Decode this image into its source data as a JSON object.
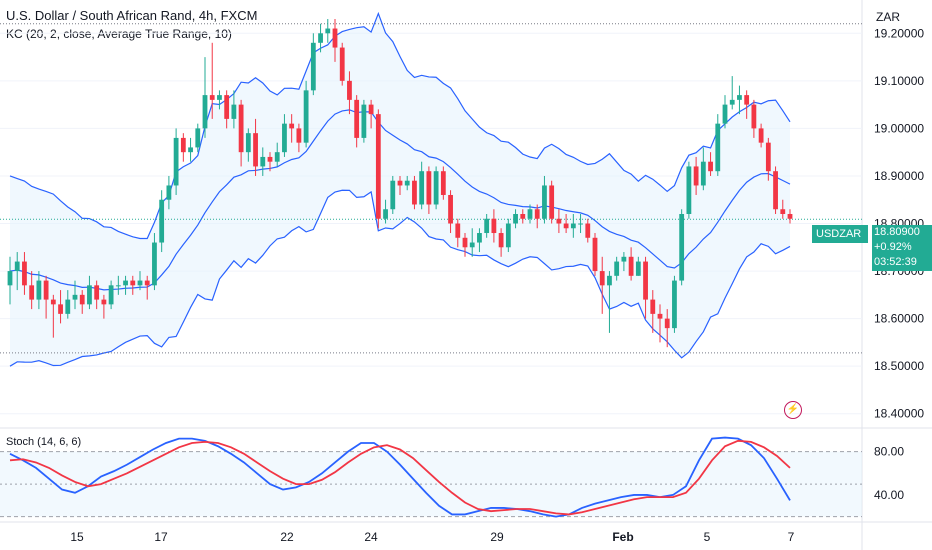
{
  "header": {
    "title": "U.S. Dollar / South African Rand, 4h, FXCM",
    "indicator": "KC (20, 2, close, Average True Range, 10)",
    "currency": "ZAR"
  },
  "price_tag": {
    "symbol": "USDZAR",
    "price": "18.80900",
    "change": "+0.92%",
    "countdown": "03:52:39"
  },
  "stoch_label": "Stoch (14, 6, 6)",
  "colors": {
    "up": "#22ab94",
    "down": "#f23645",
    "band": "#2962ff",
    "stoch_k": "#2962ff",
    "stoch_d": "#f23645",
    "fill": "#e3f2fd"
  },
  "chart_data": [
    {
      "type": "candlestick",
      "title": "U.S. Dollar / South African Rand, 4h, FXCM",
      "x_ticks": [
        "15",
        "17",
        "22",
        "24",
        "29",
        "Feb",
        "5",
        "7"
      ],
      "y_ticks": [
        "18.40000",
        "18.50000",
        "18.60000",
        "18.70000",
        "18.80000",
        "18.90000",
        "19.00000",
        "19.10000",
        "19.20000"
      ],
      "ylim": [
        18.37,
        19.27
      ],
      "reference_lines": [
        19.22,
        18.528
      ],
      "last_price": 18.809,
      "candles": [
        [
          18.67,
          18.7,
          18.63,
          18.73
        ],
        [
          18.7,
          18.72,
          18.66,
          18.74
        ],
        [
          18.72,
          18.67,
          18.65,
          18.74
        ],
        [
          18.67,
          18.64,
          18.62,
          18.7
        ],
        [
          18.64,
          18.68,
          18.62,
          18.7
        ],
        [
          18.68,
          18.64,
          18.6,
          18.69
        ],
        [
          18.64,
          18.63,
          18.56,
          18.65
        ],
        [
          18.63,
          18.61,
          18.59,
          18.66
        ],
        [
          18.61,
          18.64,
          18.6,
          18.66
        ],
        [
          18.64,
          18.65,
          18.62,
          18.68
        ],
        [
          18.65,
          18.63,
          18.61,
          18.66
        ],
        [
          18.63,
          18.67,
          18.62,
          18.69
        ],
        [
          18.67,
          18.64,
          18.62,
          18.68
        ],
        [
          18.64,
          18.63,
          18.6,
          18.65
        ],
        [
          18.63,
          18.67,
          18.62,
          18.68
        ],
        [
          18.67,
          18.67,
          18.65,
          18.69
        ],
        [
          18.67,
          18.68,
          18.65,
          18.69
        ],
        [
          18.68,
          18.67,
          18.65,
          18.69
        ],
        [
          18.67,
          18.68,
          18.66,
          18.7
        ],
        [
          18.68,
          18.67,
          18.64,
          18.69
        ],
        [
          18.67,
          18.76,
          18.66,
          18.78
        ],
        [
          18.76,
          18.85,
          18.74,
          18.87
        ],
        [
          18.85,
          18.88,
          18.83,
          18.9
        ],
        [
          18.88,
          18.98,
          18.86,
          19.0
        ],
        [
          18.98,
          18.95,
          18.93,
          18.99
        ],
        [
          18.95,
          18.96,
          18.93,
          18.98
        ],
        [
          18.96,
          19.0,
          18.95,
          19.01
        ],
        [
          19.0,
          19.07,
          18.98,
          19.15
        ],
        [
          19.07,
          19.06,
          19.02,
          19.18
        ],
        [
          19.06,
          19.07,
          19.04,
          19.08
        ],
        [
          19.07,
          19.02,
          19.0,
          19.08
        ],
        [
          19.02,
          19.05,
          19.0,
          19.08
        ],
        [
          19.05,
          18.95,
          18.92,
          19.06
        ],
        [
          18.95,
          18.99,
          18.93,
          19.0
        ],
        [
          18.99,
          18.92,
          18.9,
          19.02
        ],
        [
          18.92,
          18.94,
          18.9,
          18.96
        ],
        [
          18.94,
          18.93,
          18.91,
          18.95
        ],
        [
          18.93,
          18.95,
          18.92,
          18.97
        ],
        [
          18.95,
          19.01,
          18.94,
          19.03
        ],
        [
          19.01,
          19.0,
          18.97,
          19.03
        ],
        [
          19.0,
          18.97,
          18.95,
          19.01
        ],
        [
          18.97,
          19.08,
          18.96,
          19.1
        ],
        [
          19.08,
          19.18,
          19.07,
          19.2
        ],
        [
          19.18,
          19.2,
          19.16,
          19.22
        ],
        [
          19.2,
          19.21,
          19.18,
          19.23
        ],
        [
          19.21,
          19.17,
          19.14,
          19.23
        ],
        [
          19.17,
          19.1,
          19.09,
          19.18
        ],
        [
          19.1,
          19.06,
          19.03,
          19.12
        ],
        [
          19.06,
          18.98,
          18.96,
          19.07
        ],
        [
          18.98,
          19.05,
          18.97,
          19.06
        ],
        [
          19.05,
          19.03,
          19.0,
          19.06
        ],
        [
          19.03,
          18.81,
          18.79,
          19.04
        ],
        [
          18.81,
          18.83,
          18.8,
          18.85
        ],
        [
          18.83,
          18.89,
          18.82,
          18.9
        ],
        [
          18.89,
          18.88,
          18.86,
          18.9
        ],
        [
          18.88,
          18.89,
          18.87,
          18.9
        ],
        [
          18.89,
          18.84,
          18.83,
          18.9
        ],
        [
          18.84,
          18.91,
          18.83,
          18.93
        ],
        [
          18.91,
          18.84,
          18.82,
          18.92
        ],
        [
          18.84,
          18.91,
          18.83,
          18.92
        ],
        [
          18.91,
          18.86,
          18.85,
          18.92
        ],
        [
          18.86,
          18.8,
          18.78,
          18.87
        ],
        [
          18.8,
          18.77,
          18.75,
          18.81
        ],
        [
          18.77,
          18.75,
          18.73,
          18.78
        ],
        [
          18.75,
          18.76,
          18.73,
          18.79
        ],
        [
          18.76,
          18.78,
          18.74,
          18.79
        ],
        [
          18.78,
          18.81,
          18.77,
          18.82
        ],
        [
          18.81,
          18.78,
          18.76,
          18.83
        ],
        [
          18.78,
          18.75,
          18.73,
          18.79
        ],
        [
          18.75,
          18.8,
          18.74,
          18.81
        ],
        [
          18.8,
          18.82,
          18.79,
          18.83
        ],
        [
          18.82,
          18.81,
          18.8,
          18.83
        ],
        [
          18.81,
          18.83,
          18.8,
          18.84
        ],
        [
          18.83,
          18.81,
          18.79,
          18.84
        ],
        [
          18.81,
          18.88,
          18.8,
          18.9
        ],
        [
          18.88,
          18.81,
          18.8,
          18.89
        ],
        [
          18.81,
          18.8,
          18.78,
          18.83
        ],
        [
          18.8,
          18.79,
          18.78,
          18.82
        ],
        [
          18.79,
          18.8,
          18.77,
          18.82
        ],
        [
          18.8,
          18.8,
          18.78,
          18.82
        ],
        [
          18.8,
          18.77,
          18.76,
          18.81
        ],
        [
          18.77,
          18.7,
          18.69,
          18.78
        ],
        [
          18.7,
          18.67,
          18.61,
          18.73
        ],
        [
          18.67,
          18.69,
          18.57,
          18.7
        ],
        [
          18.69,
          18.72,
          18.68,
          18.73
        ],
        [
          18.72,
          18.73,
          18.7,
          18.74
        ],
        [
          18.73,
          18.69,
          18.68,
          18.75
        ],
        [
          18.69,
          18.72,
          18.69,
          18.73
        ],
        [
          18.72,
          18.64,
          18.6,
          18.73
        ],
        [
          18.64,
          18.61,
          18.57,
          18.66
        ],
        [
          18.61,
          18.6,
          18.55,
          18.63
        ],
        [
          18.6,
          18.58,
          18.54,
          18.62
        ],
        [
          18.58,
          18.68,
          18.57,
          18.69
        ],
        [
          18.68,
          18.82,
          18.67,
          18.83
        ],
        [
          18.82,
          18.92,
          18.81,
          18.93
        ],
        [
          18.92,
          18.88,
          18.86,
          18.94
        ],
        [
          18.88,
          18.93,
          18.87,
          18.96
        ],
        [
          18.93,
          18.91,
          18.9,
          18.95
        ],
        [
          18.91,
          19.01,
          18.9,
          19.03
        ],
        [
          19.01,
          19.05,
          19.0,
          19.07
        ],
        [
          19.05,
          19.06,
          19.04,
          19.11
        ],
        [
          19.06,
          19.07,
          19.03,
          19.09
        ],
        [
          19.07,
          19.05,
          19.02,
          19.08
        ],
        [
          19.05,
          19.0,
          18.98,
          19.06
        ],
        [
          19.0,
          18.97,
          18.96,
          19.01
        ],
        [
          18.97,
          18.91,
          18.89,
          18.98
        ],
        [
          18.91,
          18.83,
          18.82,
          18.92
        ],
        [
          18.83,
          18.82,
          18.81,
          18.85
        ],
        [
          18.82,
          18.81,
          18.8,
          18.83
        ]
      ]
    },
    {
      "type": "line",
      "title": "Stoch (14, 6, 6)",
      "y_ticks": [
        "40.00",
        "80.00"
      ],
      "ylim": [
        15,
        100
      ],
      "levels": [
        80,
        50,
        20
      ],
      "series": [
        {
          "color": "#2962ff",
          "values": [
            78,
            72,
            65,
            55,
            45,
            42,
            48,
            57,
            62,
            68,
            75,
            82,
            88,
            92,
            92,
            90,
            85,
            78,
            70,
            60,
            50,
            45,
            47,
            52,
            60,
            70,
            80,
            88,
            88,
            80,
            68,
            55,
            42,
            30,
            22,
            22,
            25,
            28,
            28,
            27,
            25,
            22,
            20,
            22,
            28,
            32,
            35,
            38,
            40,
            40,
            38,
            40,
            48,
            72,
            92,
            93,
            92,
            86,
            74,
            55,
            35
          ]
        },
        {
          "color": "#f23645",
          "values": [
            72,
            73,
            70,
            65,
            58,
            52,
            48,
            50,
            55,
            60,
            66,
            72,
            78,
            84,
            88,
            89,
            88,
            84,
            78,
            70,
            62,
            55,
            50,
            50,
            54,
            61,
            70,
            78,
            84,
            86,
            82,
            74,
            63,
            52,
            42,
            33,
            27,
            25,
            26,
            27,
            27,
            25,
            23,
            22,
            24,
            27,
            30,
            33,
            36,
            38,
            38,
            38,
            42,
            55,
            72,
            85,
            90,
            89,
            84,
            76,
            65
          ]
        }
      ]
    }
  ]
}
